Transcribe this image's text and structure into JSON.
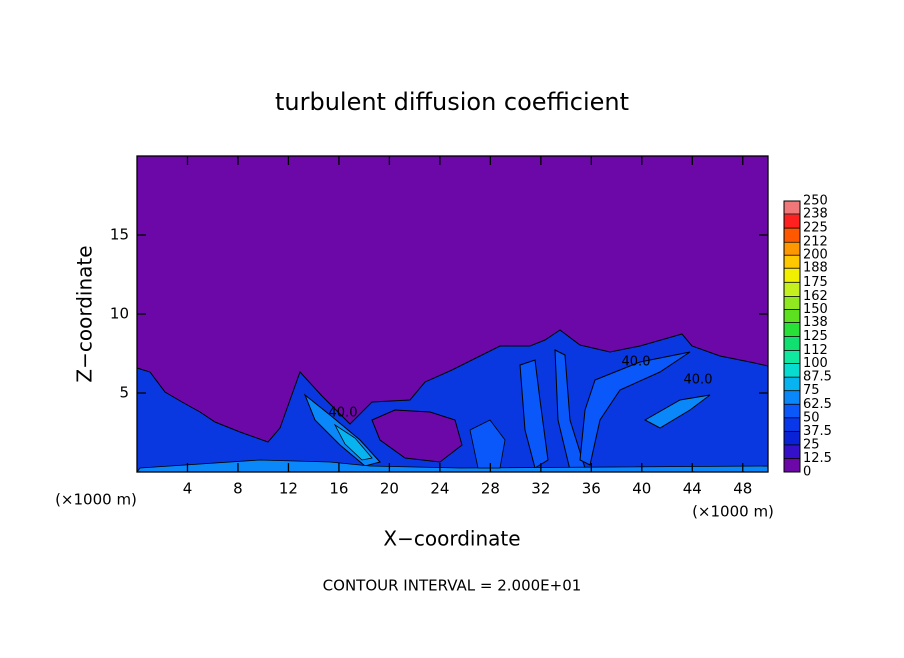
{
  "chart_data": {
    "type": "contour",
    "title": "turbulent diffusion coefficient",
    "x_label": "X−coordinate",
    "y_label": "Z−coordinate",
    "x_unit_left": "(×1000 m)",
    "x_unit_right": "(×1000 m)",
    "footer": "CONTOUR INTERVAL = 2.000E+01",
    "xlim": [
      0,
      50
    ],
    "ylim": [
      0,
      20
    ],
    "xticks": [
      4,
      8,
      12,
      16,
      20,
      24,
      28,
      32,
      36,
      40,
      44,
      48
    ],
    "yticks": [
      5,
      10,
      15
    ],
    "colorbar": {
      "lim": [
        0,
        250
      ],
      "ticks": [
        0,
        12.5,
        25,
        37.5,
        50,
        62.5,
        75,
        87.5,
        100,
        112,
        125,
        138,
        150,
        162,
        175,
        188,
        200,
        212,
        225,
        238,
        250
      ],
      "colors": [
        "#6c08a8",
        "#3410c8",
        "#0a22d6",
        "#0838ea",
        "#0a58fa",
        "#0a88fa",
        "#08b4f0",
        "#08dcd0",
        "#10e8a0",
        "#10e070",
        "#28e038",
        "#5ce020",
        "#90e820",
        "#c4f020",
        "#f0f000",
        "#ffc800",
        "#ff9800",
        "#ff5800",
        "#ff2020",
        "#f07878"
      ]
    },
    "annotations": [
      "40.0",
      "40.0",
      "40.0"
    ]
  }
}
